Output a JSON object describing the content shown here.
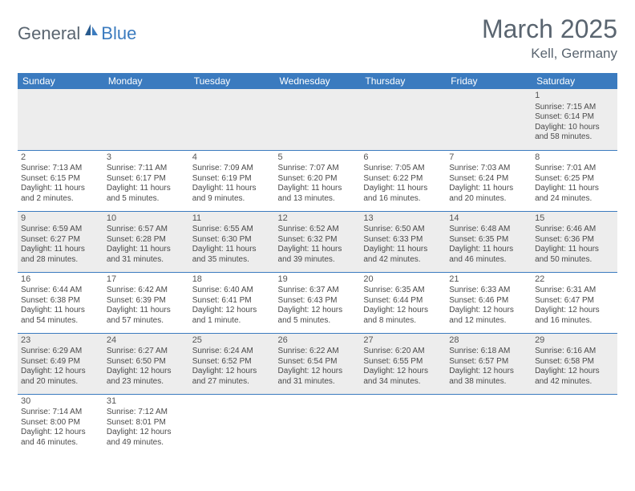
{
  "logo": {
    "part1": "General",
    "part2": "Blue"
  },
  "title": "March 2025",
  "location": "Kell, Germany",
  "colors": {
    "header_bg": "#3b7bbf",
    "header_text": "#ffffff",
    "row_grey": "#ededed",
    "row_white": "#ffffff",
    "text": "#4a4a4a",
    "border": "#3b7bbf"
  },
  "days": [
    "Sunday",
    "Monday",
    "Tuesday",
    "Wednesday",
    "Thursday",
    "Friday",
    "Saturday"
  ],
  "weeks": [
    [
      null,
      null,
      null,
      null,
      null,
      null,
      {
        "n": "1",
        "sr": "Sunrise: 7:15 AM",
        "ss": "Sunset: 6:14 PM",
        "dl": "Daylight: 10 hours and 58 minutes."
      }
    ],
    [
      {
        "n": "2",
        "sr": "Sunrise: 7:13 AM",
        "ss": "Sunset: 6:15 PM",
        "dl": "Daylight: 11 hours and 2 minutes."
      },
      {
        "n": "3",
        "sr": "Sunrise: 7:11 AM",
        "ss": "Sunset: 6:17 PM",
        "dl": "Daylight: 11 hours and 5 minutes."
      },
      {
        "n": "4",
        "sr": "Sunrise: 7:09 AM",
        "ss": "Sunset: 6:19 PM",
        "dl": "Daylight: 11 hours and 9 minutes."
      },
      {
        "n": "5",
        "sr": "Sunrise: 7:07 AM",
        "ss": "Sunset: 6:20 PM",
        "dl": "Daylight: 11 hours and 13 minutes."
      },
      {
        "n": "6",
        "sr": "Sunrise: 7:05 AM",
        "ss": "Sunset: 6:22 PM",
        "dl": "Daylight: 11 hours and 16 minutes."
      },
      {
        "n": "7",
        "sr": "Sunrise: 7:03 AM",
        "ss": "Sunset: 6:24 PM",
        "dl": "Daylight: 11 hours and 20 minutes."
      },
      {
        "n": "8",
        "sr": "Sunrise: 7:01 AM",
        "ss": "Sunset: 6:25 PM",
        "dl": "Daylight: 11 hours and 24 minutes."
      }
    ],
    [
      {
        "n": "9",
        "sr": "Sunrise: 6:59 AM",
        "ss": "Sunset: 6:27 PM",
        "dl": "Daylight: 11 hours and 28 minutes."
      },
      {
        "n": "10",
        "sr": "Sunrise: 6:57 AM",
        "ss": "Sunset: 6:28 PM",
        "dl": "Daylight: 11 hours and 31 minutes."
      },
      {
        "n": "11",
        "sr": "Sunrise: 6:55 AM",
        "ss": "Sunset: 6:30 PM",
        "dl": "Daylight: 11 hours and 35 minutes."
      },
      {
        "n": "12",
        "sr": "Sunrise: 6:52 AM",
        "ss": "Sunset: 6:32 PM",
        "dl": "Daylight: 11 hours and 39 minutes."
      },
      {
        "n": "13",
        "sr": "Sunrise: 6:50 AM",
        "ss": "Sunset: 6:33 PM",
        "dl": "Daylight: 11 hours and 42 minutes."
      },
      {
        "n": "14",
        "sr": "Sunrise: 6:48 AM",
        "ss": "Sunset: 6:35 PM",
        "dl": "Daylight: 11 hours and 46 minutes."
      },
      {
        "n": "15",
        "sr": "Sunrise: 6:46 AM",
        "ss": "Sunset: 6:36 PM",
        "dl": "Daylight: 11 hours and 50 minutes."
      }
    ],
    [
      {
        "n": "16",
        "sr": "Sunrise: 6:44 AM",
        "ss": "Sunset: 6:38 PM",
        "dl": "Daylight: 11 hours and 54 minutes."
      },
      {
        "n": "17",
        "sr": "Sunrise: 6:42 AM",
        "ss": "Sunset: 6:39 PM",
        "dl": "Daylight: 11 hours and 57 minutes."
      },
      {
        "n": "18",
        "sr": "Sunrise: 6:40 AM",
        "ss": "Sunset: 6:41 PM",
        "dl": "Daylight: 12 hours and 1 minute."
      },
      {
        "n": "19",
        "sr": "Sunrise: 6:37 AM",
        "ss": "Sunset: 6:43 PM",
        "dl": "Daylight: 12 hours and 5 minutes."
      },
      {
        "n": "20",
        "sr": "Sunrise: 6:35 AM",
        "ss": "Sunset: 6:44 PM",
        "dl": "Daylight: 12 hours and 8 minutes."
      },
      {
        "n": "21",
        "sr": "Sunrise: 6:33 AM",
        "ss": "Sunset: 6:46 PM",
        "dl": "Daylight: 12 hours and 12 minutes."
      },
      {
        "n": "22",
        "sr": "Sunrise: 6:31 AM",
        "ss": "Sunset: 6:47 PM",
        "dl": "Daylight: 12 hours and 16 minutes."
      }
    ],
    [
      {
        "n": "23",
        "sr": "Sunrise: 6:29 AM",
        "ss": "Sunset: 6:49 PM",
        "dl": "Daylight: 12 hours and 20 minutes."
      },
      {
        "n": "24",
        "sr": "Sunrise: 6:27 AM",
        "ss": "Sunset: 6:50 PM",
        "dl": "Daylight: 12 hours and 23 minutes."
      },
      {
        "n": "25",
        "sr": "Sunrise: 6:24 AM",
        "ss": "Sunset: 6:52 PM",
        "dl": "Daylight: 12 hours and 27 minutes."
      },
      {
        "n": "26",
        "sr": "Sunrise: 6:22 AM",
        "ss": "Sunset: 6:54 PM",
        "dl": "Daylight: 12 hours and 31 minutes."
      },
      {
        "n": "27",
        "sr": "Sunrise: 6:20 AM",
        "ss": "Sunset: 6:55 PM",
        "dl": "Daylight: 12 hours and 34 minutes."
      },
      {
        "n": "28",
        "sr": "Sunrise: 6:18 AM",
        "ss": "Sunset: 6:57 PM",
        "dl": "Daylight: 12 hours and 38 minutes."
      },
      {
        "n": "29",
        "sr": "Sunrise: 6:16 AM",
        "ss": "Sunset: 6:58 PM",
        "dl": "Daylight: 12 hours and 42 minutes."
      }
    ],
    [
      {
        "n": "30",
        "sr": "Sunrise: 7:14 AM",
        "ss": "Sunset: 8:00 PM",
        "dl": "Daylight: 12 hours and 46 minutes."
      },
      {
        "n": "31",
        "sr": "Sunrise: 7:12 AM",
        "ss": "Sunset: 8:01 PM",
        "dl": "Daylight: 12 hours and 49 minutes."
      },
      null,
      null,
      null,
      null,
      null
    ]
  ]
}
